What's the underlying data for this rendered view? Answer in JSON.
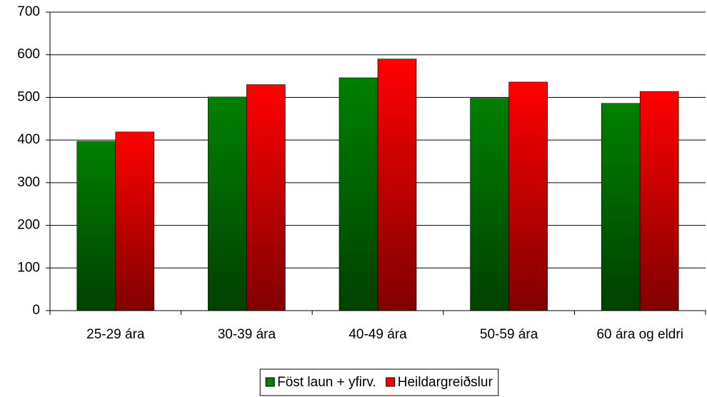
{
  "chart_data": {
    "type": "bar",
    "categories": [
      "25-29 ára",
      "30-39 ára",
      "40-49 ára",
      "50-59 ára",
      "60 ára og eldri"
    ],
    "series": [
      {
        "name": "Föst laun + yfirv.",
        "color": "#008000",
        "values": [
          397,
          501,
          546,
          498,
          486
        ]
      },
      {
        "name": "Heildargreiðslur",
        "color": "#ff0000",
        "values": [
          419,
          530,
          590,
          536,
          514
        ]
      }
    ],
    "ylim": [
      0,
      700
    ],
    "yticks": [
      0,
      100,
      200,
      300,
      400,
      500,
      600,
      700
    ],
    "grid": true,
    "legend": "bottom"
  }
}
